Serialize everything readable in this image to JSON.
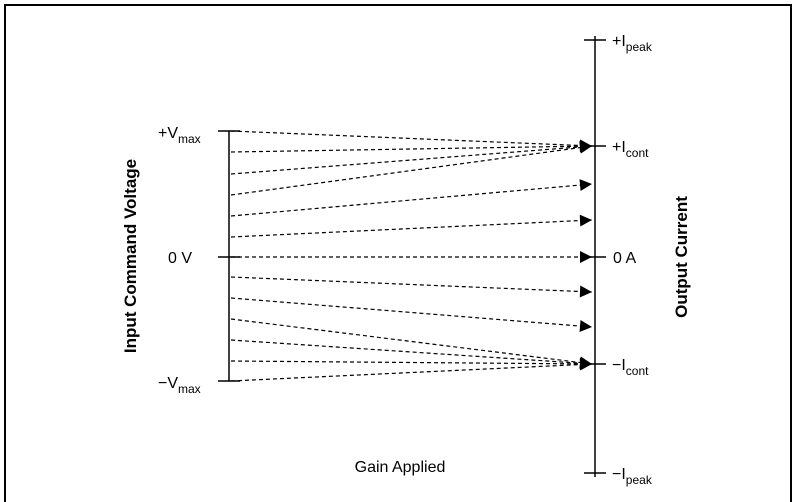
{
  "input_axis": {
    "title": "Input Command Voltage",
    "top": {
      "main": "+V",
      "sub": "max"
    },
    "middle": "0 V",
    "bottom": {
      "main": "−V",
      "sub": "max"
    }
  },
  "output_axis": {
    "title": "Output Current",
    "peak_top": {
      "main": "+I",
      "sub": "peak"
    },
    "cont_top": {
      "main": "+I",
      "sub": "cont"
    },
    "middle": "0 A",
    "cont_bottom": {
      "main": "−I",
      "sub": "cont"
    },
    "peak_bottom": {
      "main": "−I",
      "sub": "peak"
    }
  },
  "caption": "Gain Applied",
  "mapping_lines": 13
}
